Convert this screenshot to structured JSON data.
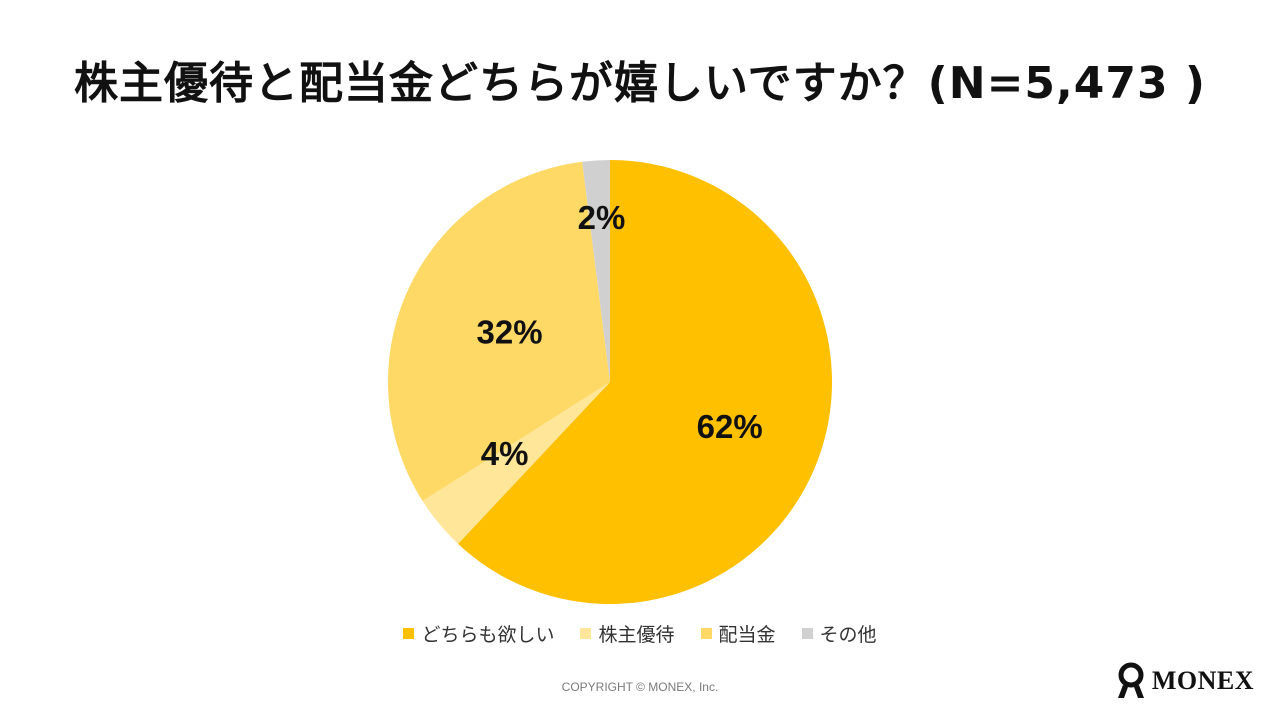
{
  "title": "株主優待と配当金どちらが嬉しいですか？(N=5,473 )",
  "chart_data": {
    "type": "pie",
    "categories": [
      "どちらも欲しい",
      "株主優待",
      "配当金",
      "その他"
    ],
    "values": [
      62,
      4,
      32,
      2
    ],
    "value_labels": [
      "62%",
      "4%",
      "32%",
      "2%"
    ],
    "colors": [
      "#FFC000",
      "#FFE699",
      "#FFD966",
      "#D0D0D0"
    ],
    "start": "12 o'clock",
    "direction": "clockwise",
    "legend_position": "bottom",
    "title": "株主優待と配当金どちらが嬉しいですか？(N=5,473 )"
  },
  "footer": {
    "copyright": "COPYRIGHT © MONEX, Inc.",
    "logo_text": "MONEX"
  }
}
